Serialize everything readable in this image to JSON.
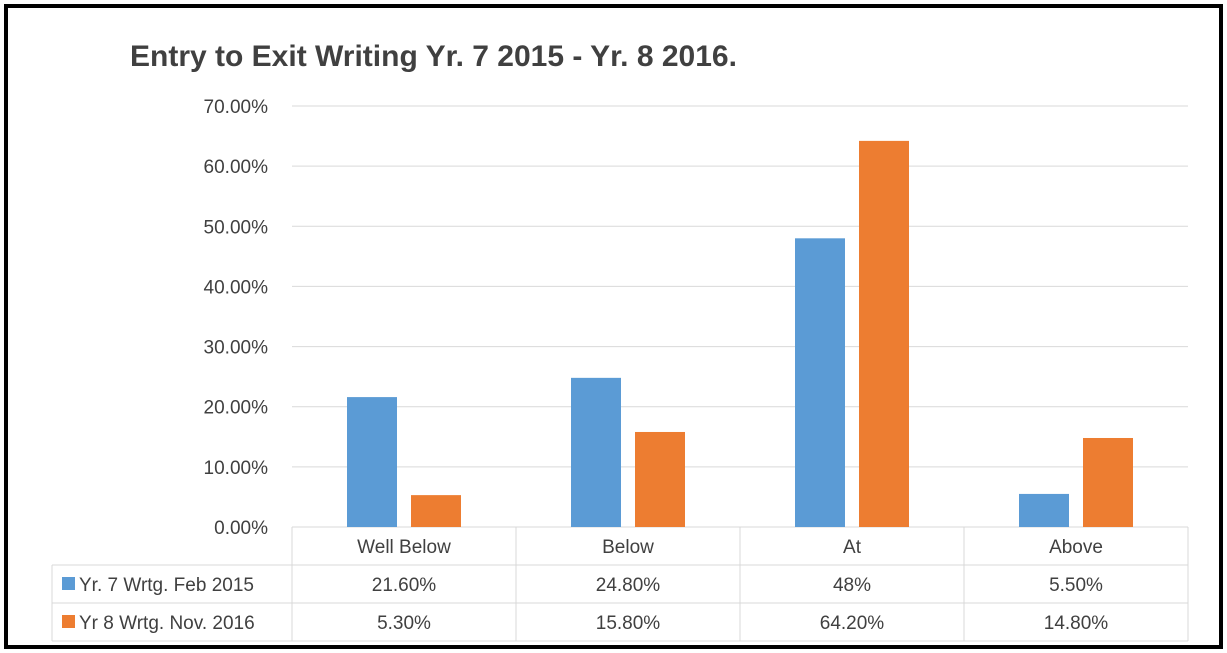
{
  "chart_data": {
    "type": "bar",
    "title": "Entry to Exit Writing Yr. 7 2015 - Yr. 8 2016.",
    "categories": [
      "Well Below",
      "Below",
      "At",
      "Above"
    ],
    "ylim": [
      0,
      70
    ],
    "yticks": [
      "0.00%",
      "10.00%",
      "20.00%",
      "30.00%",
      "40.00%",
      "50.00%",
      "60.00%",
      "70.00%"
    ],
    "grid": true,
    "legend_placement": "data table below chart",
    "series": [
      {
        "name": "Yr. 7 Wrtg. Feb 2015",
        "color": "#5B9BD5",
        "values": [
          21.6,
          24.8,
          48,
          5.5
        ],
        "labels": [
          "21.60%",
          "24.80%",
          "48%",
          "5.50%"
        ]
      },
      {
        "name": "Yr 8 Wrtg. Nov. 2016",
        "color": "#ED7D31",
        "values": [
          5.3,
          15.8,
          64.2,
          14.8
        ],
        "labels": [
          "5.30%",
          "15.80%",
          "64.20%",
          "14.80%"
        ]
      }
    ]
  }
}
